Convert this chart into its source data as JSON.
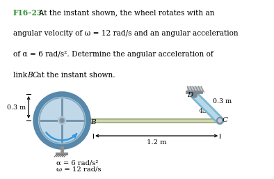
{
  "bg_color": "#ffffff",
  "text_color": "#000000",
  "green_color": "#2d8b2d",
  "blue_link_color": "#7ab8d4",
  "blue_link_light": "#b8d8e8",
  "wheel_rim_color": "#5888aa",
  "wheel_fill_color": "#c0d8e8",
  "rod_color": "#a0a880",
  "rod_light": "#d0d8b0",
  "spoke_color": "#7090a8",
  "hub_color": "#90a8b8",
  "support_color": "#909090",
  "arc_color": "#3399dd",
  "dim_color": "#000000",
  "label_F": "F16–23.",
  "line1": "  At the instant shown, the wheel rotates with an",
  "line2": "angular velocity of ω = 12 rad/s and an angular acceleration",
  "line3": "of α = 6 rad/s². Determine the angular acceleration of",
  "line4a": "link ",
  "line4b": "BC",
  "line4c": " at the instant shown.",
  "alpha_label": "α = 6 rad/s²",
  "omega_label": "ω = 12 rad/s",
  "dim_03_left": "0.3 m",
  "dim_03_right": "0.3 m",
  "dim_12": "1.2 m",
  "angle_label": "45°",
  "label_B": "B",
  "label_C": "C",
  "label_D": "D",
  "fontsize_text": 7.6,
  "fontsize_labels": 7.5
}
